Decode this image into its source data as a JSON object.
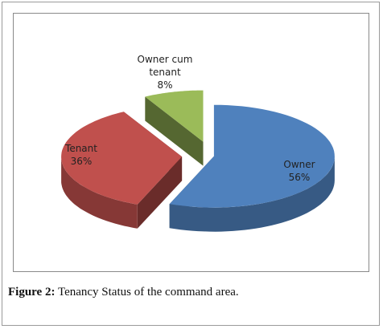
{
  "chart_data": {
    "type": "pie",
    "categories": [
      "Owner",
      "Tenant",
      "Owner cum tenant"
    ],
    "values": [
      56,
      36,
      8
    ],
    "value_labels": [
      "56%",
      "36%",
      "8%"
    ],
    "colors": [
      "#4f81bd",
      "#c0504d",
      "#9bbb59"
    ],
    "caption_label": "Figure 2:",
    "caption": "Tenancy Status of the command area."
  }
}
